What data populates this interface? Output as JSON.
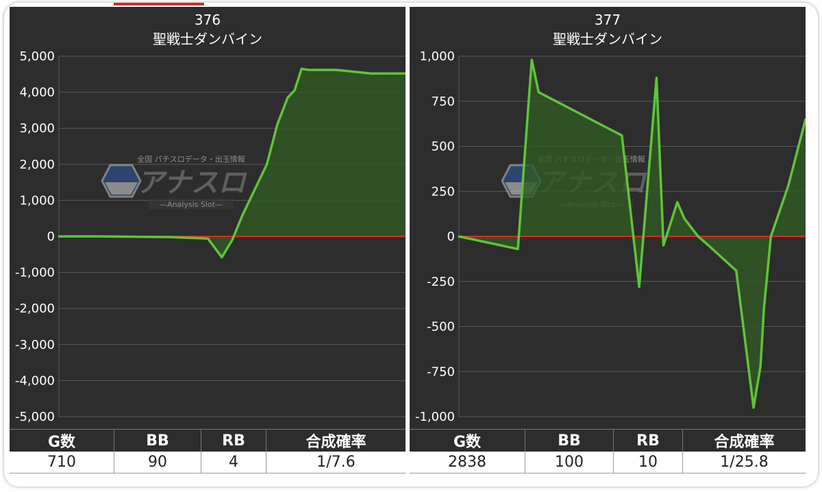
{
  "charts": [
    {
      "title": "376",
      "subtitle": "聖戦士ダンバイン",
      "stats": {
        "headers": [
          "G数",
          "BB",
          "RB",
          "合成確率"
        ],
        "values": [
          "710",
          "90",
          "4",
          "1/7.6"
        ]
      },
      "watermark": {
        "top": "全国 パチスロデータ・出玉情報",
        "main": "アナスロ",
        "sub": "—Analysis Slot—"
      }
    },
    {
      "title": "377",
      "subtitle": "聖戦士ダンバイン",
      "stats": {
        "headers": [
          "G数",
          "BB",
          "RB",
          "合成確率"
        ],
        "values": [
          "2838",
          "100",
          "10",
          "1/25.8"
        ]
      },
      "watermark": {
        "top": "全国 パチスロデータ・出玉情報",
        "main": "アナスロ",
        "sub": "—Analysis Slot—"
      }
    }
  ],
  "colors": {
    "line": "#5fc43a",
    "fill": "#2f5a23",
    "zero_line": "#e02a1a",
    "grid": "#5a5a5a",
    "panel": "#2d2d2d"
  },
  "chart_data": [
    {
      "type": "area",
      "title": "376",
      "subtitle": "聖戦士ダンバイン",
      "ylim": [
        -5000,
        5000
      ],
      "yticks": [
        5000,
        4000,
        3000,
        2000,
        1000,
        0,
        -1000,
        -2000,
        -3000,
        -4000,
        -5000
      ],
      "ytick_labels": [
        "5,000",
        "4,000",
        "3,000",
        "2,000",
        "1,000",
        "0",
        "-1,000",
        "-2,000",
        "-3,000",
        "-4,000",
        "-5,000"
      ],
      "xlim": [
        0,
        100
      ],
      "grid": true,
      "x": [
        0,
        12,
        32,
        43,
        47,
        50,
        53,
        56,
        60,
        63,
        66,
        68,
        70,
        72,
        75,
        77,
        80,
        90,
        95,
        100
      ],
      "y": [
        0,
        0,
        -20,
        -60,
        -580,
        -100,
        600,
        1200,
        2000,
        3100,
        3850,
        4050,
        4650,
        4620,
        4620,
        4620,
        4620,
        4520,
        4520,
        4520
      ]
    },
    {
      "type": "area",
      "title": "377",
      "subtitle": "聖戦士ダンバイン",
      "ylim": [
        -1000,
        1000
      ],
      "yticks": [
        1000,
        750,
        500,
        250,
        0,
        -250,
        -500,
        -750,
        -1000
      ],
      "ytick_labels": [
        "1,000",
        "750",
        "500",
        "250",
        "0",
        "-250",
        "-500",
        "-750",
        "-1,000"
      ],
      "xlim": [
        0,
        100
      ],
      "grid": true,
      "x": [
        0,
        17,
        21,
        23,
        47,
        52,
        57,
        59,
        63,
        65,
        69,
        72,
        80,
        85,
        87,
        88,
        90,
        95,
        100
      ],
      "y": [
        0,
        -70,
        980,
        800,
        560,
        -280,
        880,
        -50,
        190,
        100,
        0,
        -50,
        -190,
        -950,
        -720,
        -400,
        0,
        280,
        650
      ]
    }
  ]
}
